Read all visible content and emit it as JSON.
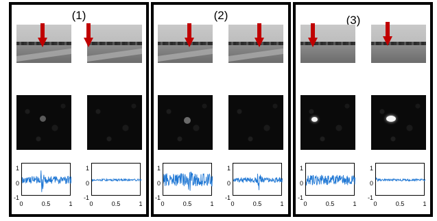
{
  "panels": [
    {
      "label": "(1)",
      "plots": [
        {
          "yticks": [
            "1",
            "0",
            "-1"
          ],
          "xticks": [
            "0",
            "0.5",
            "1"
          ]
        },
        {
          "yticks": [
            "1",
            "0",
            "-1"
          ],
          "xticks": [
            "0",
            "0.5",
            "1"
          ]
        }
      ]
    },
    {
      "label": "(2)",
      "plots": [
        {
          "yticks": [
            "1",
            "0",
            "-1"
          ],
          "xticks": [
            "0",
            "0.5",
            "1"
          ]
        },
        {
          "yticks": [
            "1",
            "0",
            "-1"
          ],
          "xticks": [
            "0",
            "0.5",
            "1"
          ]
        }
      ]
    },
    {
      "label": "(3)",
      "plots": [
        {
          "yticks": [
            "1",
            "0",
            "-1"
          ],
          "xticks": [
            "0",
            "0.5",
            "1"
          ]
        },
        {
          "yticks": [
            "1",
            "0",
            "-1"
          ],
          "xticks": [
            "0",
            "0.5",
            "1"
          ]
        }
      ]
    }
  ],
  "colors": {
    "arrow": "#c00000",
    "signal": "#1f77d4",
    "border": "#000000"
  }
}
